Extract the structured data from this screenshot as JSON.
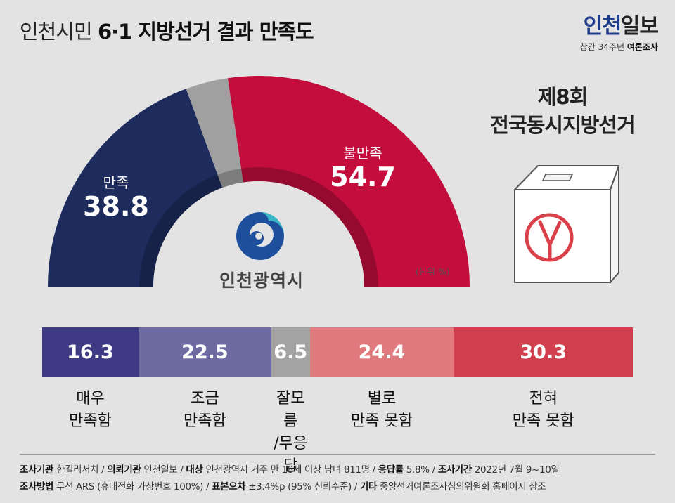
{
  "header": {
    "title_prefix": "인천시민",
    "title_main": "6·1 지방선거 결과 만족도",
    "brand_part1": "인천",
    "brand_part2": "일보",
    "brand_sub_plain": "창간 34주년",
    "brand_sub_bold": "여론조사"
  },
  "ballot": {
    "title_line1": "제8회",
    "title_line2": "전국동시지방선거"
  },
  "seal": {
    "name": "인천광역시"
  },
  "unit": "(단위 %)",
  "chart_data": [
    {
      "type": "pie",
      "shape": "half-donut",
      "slices": [
        {
          "label": "만족",
          "value": 38.8,
          "color": "#1d2c5c"
        },
        {
          "label": "잘모름/무응답",
          "value": 6.5,
          "color": "#a0a0a0"
        },
        {
          "label": "불만족",
          "value": 54.7,
          "color": "#c20d3d"
        }
      ],
      "unit": "%"
    },
    {
      "type": "bar",
      "orientation": "horizontal-stacked",
      "categories": [
        "매우\n만족함",
        "조금\n만족함",
        "잘모름\n/무응답",
        "별로\n만족 못함",
        "전혀\n만족 못함"
      ],
      "values": [
        16.3,
        22.5,
        6.5,
        24.4,
        30.3
      ],
      "colors": [
        "#3e3b84",
        "#6e6ba3",
        "#a3a3a3",
        "#e07a7e",
        "#cf3f4e"
      ],
      "labels": [
        "16.3",
        "22.5",
        "6.5",
        "24.4",
        "30.3"
      ]
    }
  ],
  "footer": {
    "line1": [
      {
        "label": "조사기관",
        "text": "한길리서치"
      },
      {
        "label": "의뢰기관",
        "text": "인천일보"
      },
      {
        "label": "대상",
        "text": "인천광역시 거주 만 18세 이상 남녀 811명"
      },
      {
        "label": "응답률",
        "text": "5.8%"
      },
      {
        "label": "조사기간",
        "text": "2022년 7월 9~10일"
      }
    ],
    "line2": [
      {
        "label": "조사방법",
        "text": "무선 ARS (휴대전화 가상번호 100%)"
      },
      {
        "label": "표본오차",
        "text": "±3.4%p (95% 신뢰수준)"
      },
      {
        "label": "기타",
        "text": "중앙선거여론조사심의위원회 홈페이지 참조"
      }
    ]
  }
}
